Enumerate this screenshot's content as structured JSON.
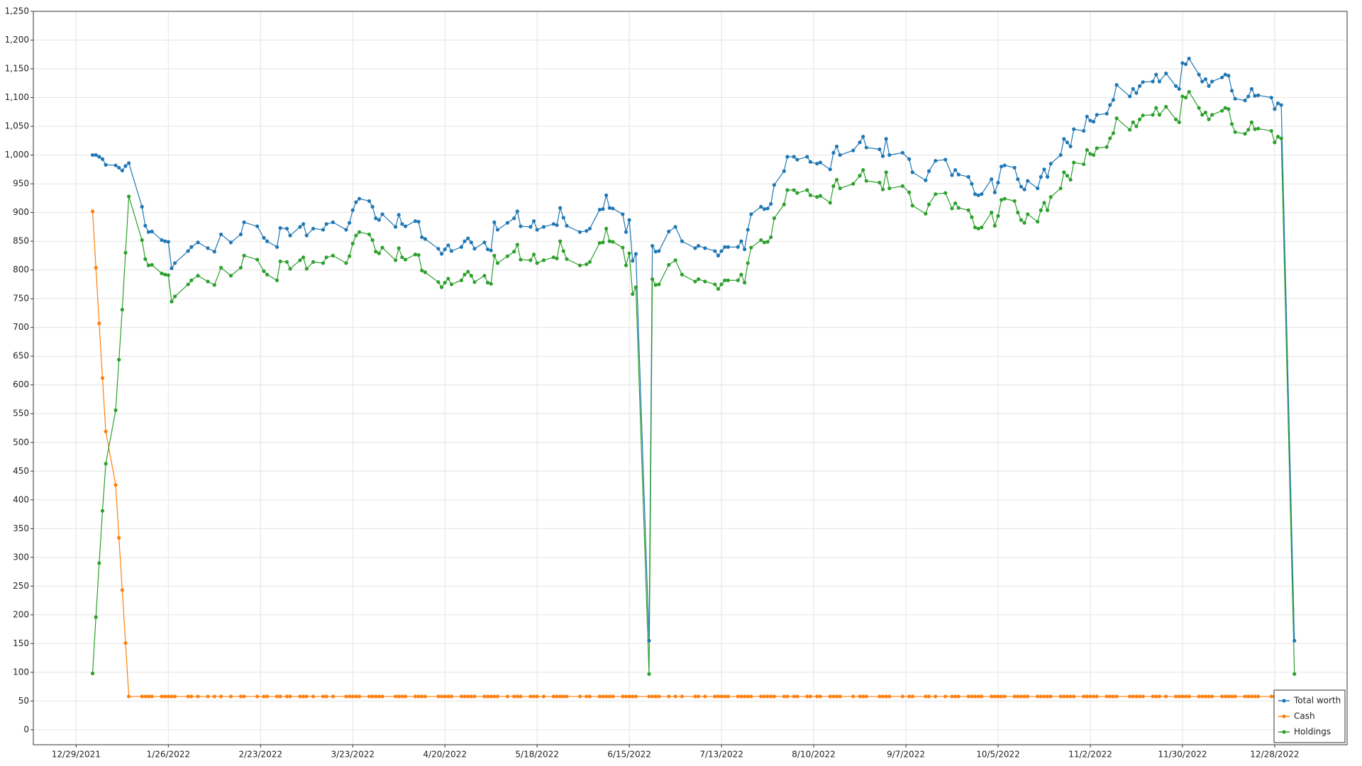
{
  "chart_data": {
    "type": "line",
    "x": [
      "1/3/2022",
      "1/4/2022",
      "1/5/2022",
      "1/6/2022",
      "1/7/2022",
      "1/10/2022",
      "1/11/2022",
      "1/12/2022",
      "1/13/2022",
      "1/14/2022",
      "1/18/2022",
      "1/19/2022",
      "1/20/2022",
      "1/21/2022",
      "1/24/2022",
      "1/25/2022",
      "1/26/2022",
      "1/27/2022",
      "1/28/2022",
      "2/1/2022",
      "2/2/2022",
      "2/4/2022",
      "2/7/2022",
      "2/9/2022",
      "2/11/2022",
      "2/14/2022",
      "2/17/2022",
      "2/18/2022",
      "2/22/2022",
      "2/24/2022",
      "2/25/2022",
      "2/28/2022",
      "3/1/2022",
      "3/3/2022",
      "3/4/2022",
      "3/7/2022",
      "3/8/2022",
      "3/9/2022",
      "3/11/2022",
      "3/14/2022",
      "3/15/2022",
      "3/17/2022",
      "3/21/2022",
      "3/22/2022",
      "3/23/2022",
      "3/24/2022",
      "3/25/2022",
      "3/28/2022",
      "3/29/2022",
      "3/30/2022",
      "3/31/2022",
      "4/1/2022",
      "4/5/2022",
      "4/6/2022",
      "4/7/2022",
      "4/8/2022",
      "4/11/2022",
      "4/12/2022",
      "4/13/2022",
      "4/14/2022",
      "4/18/2022",
      "4/19/2022",
      "4/20/2022",
      "4/21/2022",
      "4/22/2022",
      "4/25/2022",
      "4/26/2022",
      "4/27/2022",
      "4/28/2022",
      "4/29/2022",
      "5/2/2022",
      "5/3/2022",
      "5/4/2022",
      "5/5/2022",
      "5/6/2022",
      "5/9/2022",
      "5/11/2022",
      "5/12/2022",
      "5/13/2022",
      "5/16/2022",
      "5/17/2022",
      "5/18/2022",
      "5/20/2022",
      "5/23/2022",
      "5/24/2022",
      "5/25/2022",
      "5/26/2022",
      "5/27/2022",
      "5/31/2022",
      "6/2/2022",
      "6/3/2022",
      "6/6/2022",
      "6/7/2022",
      "6/8/2022",
      "6/9/2022",
      "6/10/2022",
      "6/13/2022",
      "6/14/2022",
      "6/15/2022",
      "6/16/2022",
      "6/17/2022",
      "6/21/2022",
      "6/22/2022",
      "6/23/2022",
      "6/24/2022",
      "6/27/2022",
      "6/29/2022",
      "7/1/2022",
      "7/5/2022",
      "7/6/2022",
      "7/8/2022",
      "7/11/2022",
      "7/12/2022",
      "7/13/2022",
      "7/14/2022",
      "7/15/2022",
      "7/18/2022",
      "7/19/2022",
      "7/20/2022",
      "7/21/2022",
      "7/22/2022",
      "7/25/2022",
      "7/26/2022",
      "7/27/2022",
      "7/28/2022",
      "7/29/2022",
      "8/1/2022",
      "8/2/2022",
      "8/4/2022",
      "8/5/2022",
      "8/8/2022",
      "8/9/2022",
      "8/11/2022",
      "8/12/2022",
      "8/15/2022",
      "8/16/2022",
      "8/17/2022",
      "8/18/2022",
      "8/22/2022",
      "8/24/2022",
      "8/25/2022",
      "8/26/2022",
      "8/30/2022",
      "8/31/2022",
      "9/1/2022",
      "9/2/2022",
      "9/6/2022",
      "9/8/2022",
      "9/9/2022",
      "9/13/2022",
      "9/14/2022",
      "9/16/2022",
      "9/19/2022",
      "9/21/2022",
      "9/22/2022",
      "9/23/2022",
      "9/26/2022",
      "9/27/2022",
      "9/28/2022",
      "9/29/2022",
      "9/30/2022",
      "10/3/2022",
      "10/4/2022",
      "10/5/2022",
      "10/6/2022",
      "10/7/2022",
      "10/10/2022",
      "10/11/2022",
      "10/12/2022",
      "10/13/2022",
      "10/14/2022",
      "10/17/2022",
      "10/18/2022",
      "10/19/2022",
      "10/20/2022",
      "10/21/2022",
      "10/24/2022",
      "10/25/2022",
      "10/26/2022",
      "10/27/2022",
      "10/28/2022",
      "10/31/2022",
      "11/1/2022",
      "11/2/2022",
      "11/3/2022",
      "11/4/2022",
      "11/7/2022",
      "11/8/2022",
      "11/9/2022",
      "11/10/2022",
      "11/14/2022",
      "11/15/2022",
      "11/16/2022",
      "11/17/2022",
      "11/18/2022",
      "11/21/2022",
      "11/22/2022",
      "11/23/2022",
      "11/25/2022",
      "11/28/2022",
      "11/29/2022",
      "11/30/2022",
      "12/1/2022",
      "12/2/2022",
      "12/5/2022",
      "12/6/2022",
      "12/7/2022",
      "12/8/2022",
      "12/9/2022",
      "12/12/2022",
      "12/13/2022",
      "12/14/2022",
      "12/15/2022",
      "12/16/2022",
      "12/19/2022",
      "12/20/2022",
      "12/21/2022",
      "12/22/2022",
      "12/23/2022",
      "12/27/2022",
      "12/28/2022",
      "12/29/2022",
      "12/30/2022",
      "1/3/2023"
    ],
    "series": [
      {
        "name": "Total worth",
        "color": "#1f77b4",
        "values": [
          1000,
          1000,
          997,
          993,
          983,
          982,
          978,
          973,
          981,
          986,
          910,
          877,
          866,
          867,
          852,
          850,
          849,
          803,
          812,
          833,
          840,
          848,
          838,
          832,
          862,
          848,
          862,
          883,
          876,
          856,
          850,
          840,
          873,
          872,
          860,
          875,
          880,
          860,
          872,
          870,
          880,
          883,
          870,
          882,
          904,
          918,
          924,
          920,
          910,
          890,
          887,
          897,
          875,
          896,
          880,
          876,
          885,
          884,
          857,
          854,
          837,
          828,
          836,
          843,
          833,
          840,
          850,
          855,
          848,
          837,
          848,
          836,
          834,
          883,
          870,
          882,
          890,
          902,
          876,
          875,
          885,
          870,
          875,
          880,
          878,
          908,
          891,
          877,
          866,
          868,
          872,
          905,
          906,
          930,
          908,
          907,
          897,
          866,
          887,
          816,
          828,
          155,
          842,
          832,
          833,
          867,
          875,
          850,
          838,
          842,
          838,
          833,
          825,
          833,
          840,
          840,
          840,
          850,
          836,
          870,
          897,
          910,
          906,
          907,
          915,
          948,
          972,
          997,
          997,
          992,
          997,
          988,
          985,
          987,
          975,
          1004,
          1015,
          1000,
          1008,
          1022,
          1032,
          1013,
          1010,
          998,
          1028,
          1000,
          1004,
          993,
          970,
          956,
          972,
          990,
          992,
          965,
          974,
          966,
          962,
          950,
          932,
          930,
          932,
          958,
          935,
          952,
          980,
          982,
          978,
          958,
          945,
          940,
          955,
          942,
          962,
          975,
          962,
          985,
          1000,
          1028,
          1022,
          1015,
          1045,
          1042,
          1067,
          1060,
          1058,
          1070,
          1072,
          1087,
          1096,
          1122,
          1102,
          1115,
          1108,
          1120,
          1127,
          1128,
          1140,
          1128,
          1142,
          1120,
          1115,
          1160,
          1158,
          1168,
          1140,
          1128,
          1132,
          1120,
          1128,
          1135,
          1140,
          1138,
          1112,
          1098,
          1095,
          1102,
          1115,
          1103,
          1104,
          1100,
          1080,
          1090,
          1087,
          155
        ]
      },
      {
        "name": "Cash",
        "color": "#ff7f0e",
        "values": [
          902,
          804,
          707,
          612,
          519,
          426,
          334,
          243,
          151,
          58,
          58,
          58,
          58,
          58,
          58,
          58,
          58,
          58,
          58,
          58,
          58,
          58,
          58,
          58,
          58,
          58,
          58,
          58,
          58,
          58,
          58,
          58,
          58,
          58,
          58,
          58,
          58,
          58,
          58,
          58,
          58,
          58,
          58,
          58,
          58,
          58,
          58,
          58,
          58,
          58,
          58,
          58,
          58,
          58,
          58,
          58,
          58,
          58,
          58,
          58,
          58,
          58,
          58,
          58,
          58,
          58,
          58,
          58,
          58,
          58,
          58,
          58,
          58,
          58,
          58,
          58,
          58,
          58,
          58,
          58,
          58,
          58,
          58,
          58,
          58,
          58,
          58,
          58,
          58,
          58,
          58,
          58,
          58,
          58,
          58,
          58,
          58,
          58,
          58,
          58,
          58,
          58,
          58,
          58,
          58,
          58,
          58,
          58,
          58,
          58,
          58,
          58,
          58,
          58,
          58,
          58,
          58,
          58,
          58,
          58,
          58,
          58,
          58,
          58,
          58,
          58,
          58,
          58,
          58,
          58,
          58,
          58,
          58,
          58,
          58,
          58,
          58,
          58,
          58,
          58,
          58,
          58,
          58,
          58,
          58,
          58,
          58,
          58,
          58,
          58,
          58,
          58,
          58,
          58,
          58,
          58,
          58,
          58,
          58,
          58,
          58,
          58,
          58,
          58,
          58,
          58,
          58,
          58,
          58,
          58,
          58,
          58,
          58,
          58,
          58,
          58,
          58,
          58,
          58,
          58,
          58,
          58,
          58,
          58,
          58,
          58,
          58,
          58,
          58,
          58,
          58,
          58,
          58,
          58,
          58,
          58,
          58,
          58,
          58,
          58,
          58,
          58,
          58,
          58,
          58,
          58,
          58,
          58,
          58,
          58,
          58,
          58,
          58,
          58,
          58,
          58,
          58,
          58,
          58,
          58,
          58,
          58,
          58,
          58
        ]
      },
      {
        "name": "Holdings",
        "color": "#2ca02c",
        "values": [
          98,
          196,
          290,
          381,
          463,
          556,
          644,
          731,
          830,
          928,
          852,
          819,
          808,
          809,
          794,
          792,
          791,
          745,
          754,
          775,
          782,
          790,
          780,
          774,
          804,
          790,
          804,
          825,
          818,
          798,
          792,
          782,
          815,
          814,
          802,
          817,
          822,
          802,
          814,
          812,
          822,
          825,
          812,
          824,
          846,
          860,
          866,
          862,
          852,
          832,
          829,
          839,
          817,
          838,
          822,
          818,
          827,
          826,
          799,
          796,
          779,
          770,
          778,
          785,
          775,
          782,
          792,
          797,
          790,
          779,
          790,
          778,
          776,
          825,
          812,
          824,
          832,
          844,
          818,
          817,
          827,
          812,
          817,
          822,
          820,
          850,
          833,
          819,
          808,
          810,
          814,
          847,
          848,
          872,
          850,
          849,
          839,
          808,
          829,
          758,
          770,
          97,
          784,
          774,
          775,
          809,
          817,
          792,
          780,
          784,
          780,
          775,
          767,
          775,
          782,
          782,
          782,
          792,
          778,
          812,
          839,
          852,
          848,
          849,
          857,
          890,
          914,
          939,
          939,
          934,
          939,
          930,
          927,
          929,
          917,
          946,
          957,
          942,
          950,
          964,
          974,
          955,
          952,
          940,
          970,
          942,
          946,
          935,
          912,
          898,
          914,
          932,
          934,
          907,
          916,
          908,
          904,
          892,
          874,
          872,
          874,
          900,
          877,
          894,
          922,
          924,
          920,
          900,
          887,
          882,
          897,
          884,
          904,
          917,
          904,
          927,
          942,
          970,
          964,
          957,
          987,
          984,
          1009,
          1002,
          1000,
          1012,
          1014,
          1029,
          1038,
          1064,
          1044,
          1057,
          1050,
          1062,
          1069,
          1070,
          1082,
          1070,
          1084,
          1062,
          1057,
          1102,
          1100,
          1110,
          1082,
          1070,
          1074,
          1062,
          1070,
          1077,
          1082,
          1080,
          1054,
          1040,
          1037,
          1044,
          1057,
          1045,
          1046,
          1042,
          1022,
          1032,
          1029,
          97
        ]
      }
    ],
    "xlim": [
      "12/16/2021",
      "1/19/2023"
    ],
    "xticks": [
      "12/29/2021",
      "1/26/2022",
      "2/23/2022",
      "3/23/2022",
      "4/20/2022",
      "5/18/2022",
      "6/15/2022",
      "7/13/2022",
      "8/10/2022",
      "9/7/2022",
      "10/5/2022",
      "11/2/2022",
      "11/30/2022",
      "12/28/2022"
    ],
    "ylim": [
      -26,
      1250
    ],
    "yticks": [
      0,
      50,
      100,
      150,
      200,
      250,
      300,
      350,
      400,
      450,
      500,
      550,
      600,
      650,
      700,
      750,
      800,
      850,
      900,
      950,
      {
        "value": 1000,
        "label": "1,000"
      },
      {
        "value": 1050,
        "label": "1,050"
      },
      {
        "value": 1100,
        "label": "1,100"
      },
      {
        "value": 1150,
        "label": "1,150"
      },
      {
        "value": 1200,
        "label": "1,200"
      },
      {
        "value": 1250,
        "label": "1,250"
      }
    ],
    "grid": true,
    "legend": "lower right"
  }
}
